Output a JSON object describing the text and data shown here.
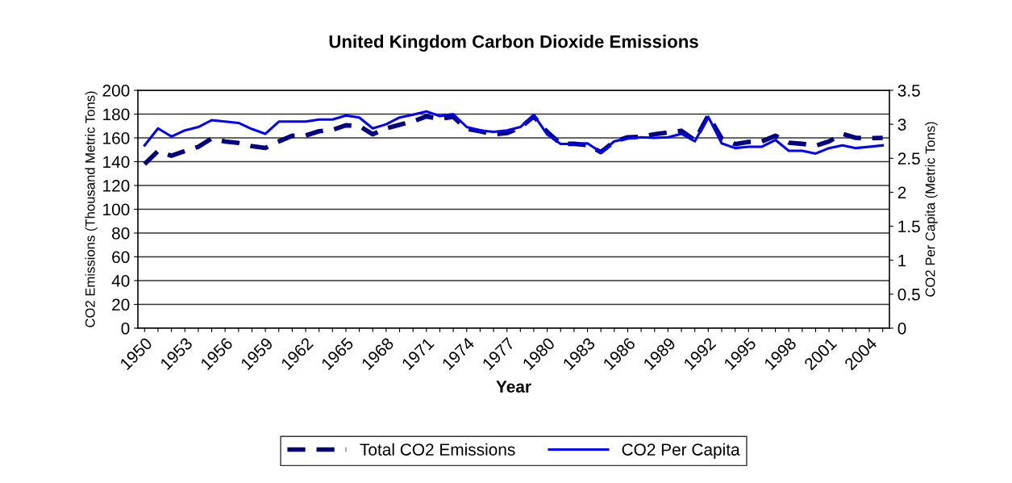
{
  "chart_data": {
    "type": "line",
    "title": "United Kingdom Carbon Dioxide Emissions",
    "xlabel": "Year",
    "ylabel": "CO2 Emissions (Thousand Metric Tons)",
    "y2label": "CO2 Per Capita (Metric Tons)",
    "categories": [
      "1950",
      null,
      null,
      "1953",
      null,
      null,
      "1956",
      null,
      null,
      "1959",
      null,
      null,
      "1962",
      null,
      null,
      "1965",
      null,
      null,
      "1968",
      null,
      null,
      "1971",
      null,
      null,
      "1974",
      null,
      null,
      "1977",
      null,
      null,
      "1980",
      null,
      null,
      "1983",
      null,
      null,
      "1986",
      null,
      null,
      "1989",
      null,
      null,
      "1992",
      null,
      null,
      "1995",
      null,
      null,
      "1998",
      null,
      null,
      "2001",
      null,
      null,
      "2004",
      null
    ],
    "series": [
      {
        "name": "Total CO2 Emissions",
        "color": "#000080",
        "line_style": "dashed",
        "values": [
          138,
          149,
          145,
          149,
          152.5,
          159.5,
          157,
          155.7,
          153,
          151.6,
          157,
          161.8,
          162,
          165.6,
          166.8,
          170.6,
          170,
          163,
          168,
          171,
          174,
          178,
          176,
          177.6,
          167.5,
          165.6,
          163,
          164,
          168.6,
          178,
          165,
          155,
          155,
          154,
          148,
          157,
          160.5,
          161,
          163,
          164.5,
          166,
          158,
          178.8,
          159.5,
          154.8,
          156.6,
          157,
          161.8,
          156,
          155,
          153.4,
          157,
          163.4,
          160,
          159.8,
          160
        ]
      },
      {
        "name": "CO2 Per Capita",
        "color": "#0000ff",
        "line_style": "solid",
        "axis": "y2",
        "values": [
          2.69,
          2.94,
          2.82,
          2.91,
          2.96,
          3.06,
          3.04,
          3.02,
          2.93,
          2.86,
          3.04,
          3.04,
          3.04,
          3.07,
          3.07,
          3.13,
          3.1,
          2.94,
          3.0,
          3.1,
          3.14,
          3.19,
          3.12,
          3.15,
          2.96,
          2.91,
          2.89,
          2.91,
          2.96,
          3.14,
          2.85,
          2.71,
          2.71,
          2.72,
          2.59,
          2.75,
          2.79,
          2.81,
          2.8,
          2.81,
          2.86,
          2.75,
          3.11,
          2.72,
          2.65,
          2.67,
          2.67,
          2.77,
          2.61,
          2.61,
          2.57,
          2.65,
          2.69,
          2.65,
          2.67,
          2.69
        ]
      }
    ],
    "ylim": [
      0,
      200
    ],
    "yticks": [
      0,
      20,
      40,
      60,
      80,
      100,
      120,
      140,
      160,
      180,
      200
    ],
    "y2lim": [
      0,
      3.5
    ],
    "y2ticks": [
      0,
      0.5,
      1,
      1.5,
      2,
      2.5,
      3,
      3.5
    ],
    "grid": "y",
    "legend": "bottom",
    "marker": "none"
  }
}
